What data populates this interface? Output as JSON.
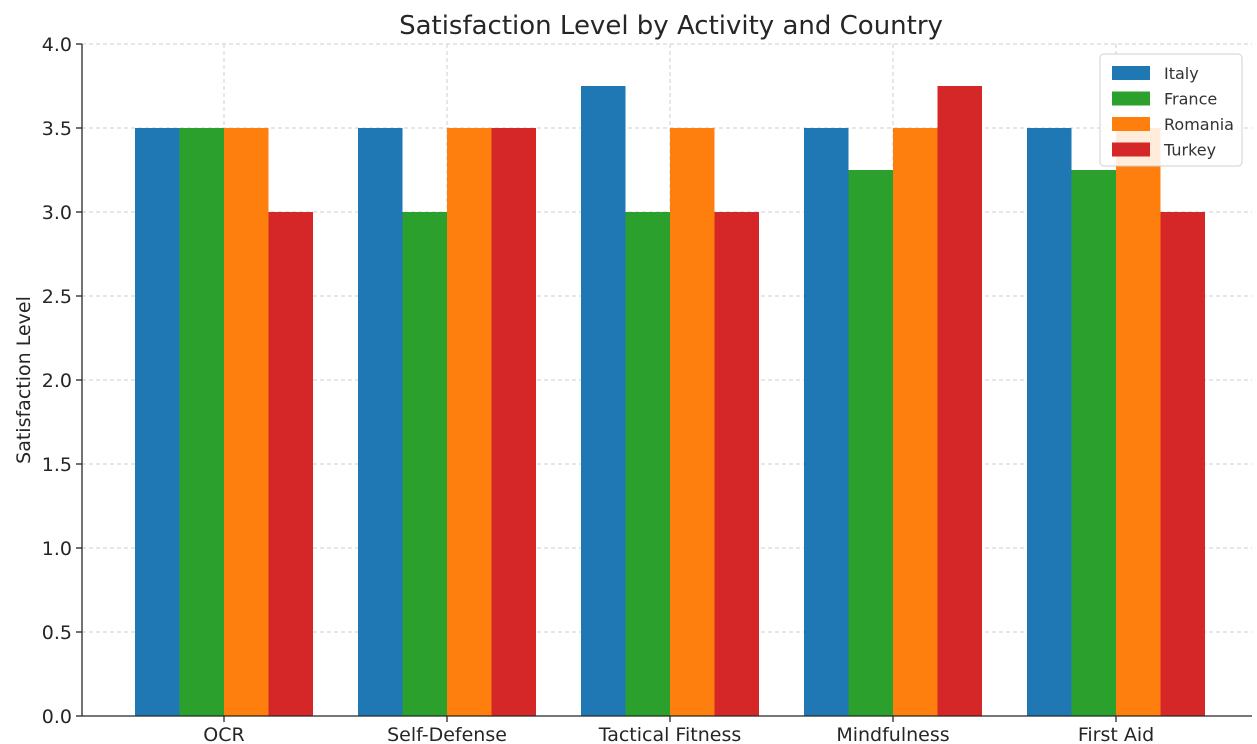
{
  "chart_data": {
    "type": "bar",
    "title": "Satisfaction Level by Activity and Country",
    "xlabel": "",
    "ylabel": "Satisfaction Level",
    "categories": [
      "OCR",
      "Self-Defense",
      "Tactical Fitness",
      "Mindfulness",
      "First Aid"
    ],
    "series": [
      {
        "name": "Italy",
        "color": "#1f77b4",
        "values": [
          3.5,
          3.5,
          3.75,
          3.5,
          3.5
        ]
      },
      {
        "name": "France",
        "color": "#2ca02c",
        "values": [
          3.5,
          3.0,
          3.0,
          3.25,
          3.25
        ]
      },
      {
        "name": "Romania",
        "color": "#ff7f0e",
        "values": [
          3.5,
          3.5,
          3.5,
          3.5,
          3.5
        ]
      },
      {
        "name": "Turkey",
        "color": "#d62728",
        "values": [
          3.0,
          3.5,
          3.0,
          3.75,
          3.0
        ]
      }
    ],
    "ylim": [
      0,
      4.0
    ],
    "yticks": [
      "0.0",
      "0.5",
      "1.0",
      "1.5",
      "2.0",
      "2.5",
      "3.0",
      "3.5",
      "4.0"
    ],
    "grid": true,
    "legend_position": "top-right"
  }
}
